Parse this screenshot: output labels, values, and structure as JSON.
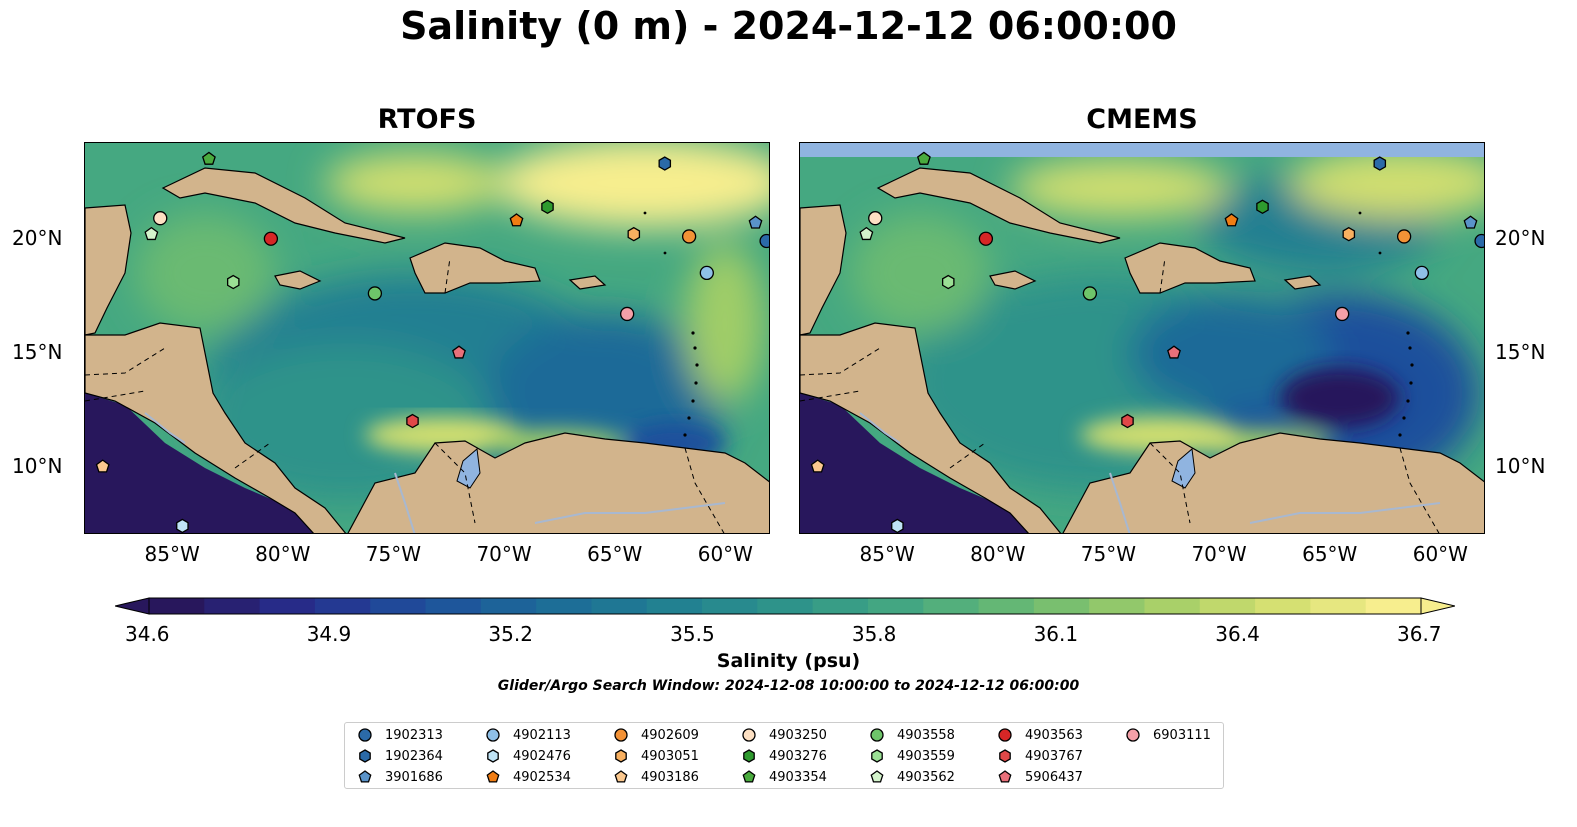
{
  "title": "Salinity (0 m) - 2024-12-12 06:00:00",
  "panels": [
    {
      "title": "RTOFS"
    },
    {
      "title": "CMEMS"
    }
  ],
  "lon_ticks": [
    "85°W",
    "80°W",
    "75°W",
    "70°W",
    "65°W",
    "60°W"
  ],
  "lat_ticks": [
    "20°N",
    "15°N",
    "10°N"
  ],
  "colorbar": {
    "label": "Salinity (psu)",
    "min": 34.6,
    "max": 36.7,
    "ticks": [
      "34.6",
      "34.9",
      "35.2",
      "35.5",
      "35.8",
      "36.1",
      "36.4",
      "36.7"
    ],
    "colormap": [
      "#28175c",
      "#272d8c",
      "#1f4f9c",
      "#1c6a98",
      "#217f92",
      "#2e938a",
      "#45a881",
      "#6bba72",
      "#a0cd68",
      "#d2df6f",
      "#f7ee8e"
    ]
  },
  "search_window": "Glider/Argo Search Window: 2024-12-08 10:00:00 to 2024-12-12 06:00:00",
  "legend": [
    {
      "id": "1902313",
      "marker": "circle",
      "color": "#2b6aa8"
    },
    {
      "id": "1902364",
      "marker": "hexagon",
      "color": "#2b6aa8"
    },
    {
      "id": "3901686",
      "marker": "pentagon",
      "color": "#5a93c9"
    },
    {
      "id": "4902113",
      "marker": "circle",
      "color": "#8fc0e8"
    },
    {
      "id": "4902476",
      "marker": "hexagon",
      "color": "#bfe3f5"
    },
    {
      "id": "4902534",
      "marker": "pentagon",
      "color": "#f07d14"
    },
    {
      "id": "4902609",
      "marker": "circle",
      "color": "#f39236"
    },
    {
      "id": "4903051",
      "marker": "hexagon",
      "color": "#f8b060"
    },
    {
      "id": "4903186",
      "marker": "pentagon",
      "color": "#fbc88e"
    },
    {
      "id": "4903250",
      "marker": "circle",
      "color": "#fde0c3"
    },
    {
      "id": "4903276",
      "marker": "hexagon",
      "color": "#2e9a2e"
    },
    {
      "id": "4903354",
      "marker": "pentagon",
      "color": "#4aab3e"
    },
    {
      "id": "4903558",
      "marker": "circle",
      "color": "#6ec46a"
    },
    {
      "id": "4903559",
      "marker": "hexagon",
      "color": "#9be095"
    },
    {
      "id": "4903562",
      "marker": "pentagon",
      "color": "#d4f4cc"
    },
    {
      "id": "4903563",
      "marker": "circle",
      "color": "#d62626"
    },
    {
      "id": "4903767",
      "marker": "hexagon",
      "color": "#e04848"
    },
    {
      "id": "5906437",
      "marker": "pentagon",
      "color": "#e8707a"
    },
    {
      "id": "6903111",
      "marker": "circle",
      "color": "#f4a0a8"
    }
  ],
  "map_extent": {
    "lon": [
      -89,
      -58
    ],
    "lat": [
      7,
      24.2
    ]
  },
  "floats": [
    {
      "id": "1902313",
      "lon": -58.2,
      "lat": 19.9
    },
    {
      "id": "1902364",
      "lon": -62.8,
      "lat": 23.3
    },
    {
      "id": "3901686",
      "lon": -58.7,
      "lat": 20.7
    },
    {
      "id": "4902113",
      "lon": -60.9,
      "lat": 18.5
    },
    {
      "id": "4902476",
      "lon": -84.6,
      "lat": 7.4
    },
    {
      "id": "4902534",
      "lon": -69.5,
      "lat": 20.8
    },
    {
      "id": "4902609",
      "lon": -61.7,
      "lat": 20.1
    },
    {
      "id": "4903051",
      "lon": -64.2,
      "lat": 20.2
    },
    {
      "id": "4903186",
      "lon": -88.2,
      "lat": 10.0
    },
    {
      "id": "4903250",
      "lon": -85.6,
      "lat": 20.9
    },
    {
      "id": "4903276",
      "lon": -68.1,
      "lat": 21.4
    },
    {
      "id": "4903354",
      "lon": -83.4,
      "lat": 23.5
    },
    {
      "id": "4903558",
      "lon": -75.9,
      "lat": 17.6
    },
    {
      "id": "4903559",
      "lon": -82.3,
      "lat": 18.1
    },
    {
      "id": "4903562",
      "lon": -86.0,
      "lat": 20.2
    },
    {
      "id": "4903563",
      "lon": -80.6,
      "lat": 20.0
    },
    {
      "id": "4903767",
      "lon": -74.2,
      "lat": 12.0
    },
    {
      "id": "5906437",
      "lon": -72.1,
      "lat": 15.0
    },
    {
      "id": "6903111",
      "lon": -64.5,
      "lat": 16.7
    }
  ]
}
